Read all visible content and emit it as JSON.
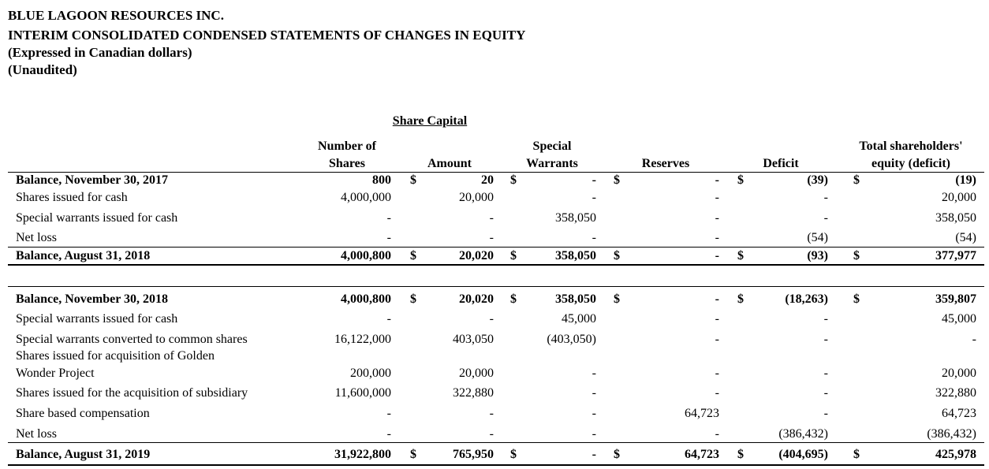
{
  "header": {
    "company": "BLUE LAGOON RESOURCES INC.",
    "statement": "INTERIM CONSOLIDATED CONDENSED STATEMENTS OF CHANGES IN EQUITY",
    "currency_note": "(Expressed in Canadian dollars)",
    "audit_note": "(Unaudited)"
  },
  "columns": {
    "group_label": "Share Capital",
    "shares": [
      "Number of",
      "Shares"
    ],
    "amount": [
      "",
      "Amount"
    ],
    "special_warrants": [
      "Special",
      "Warrants"
    ],
    "reserves": [
      "",
      "Reserves"
    ],
    "deficit": [
      "",
      "Deficit"
    ],
    "total": [
      "Total shareholders'",
      "equity (deficit)"
    ]
  },
  "dollar_sign": "$",
  "rows": [
    {
      "label": "Balance, November 30, 2017",
      "bold": true,
      "dollar": true,
      "values": [
        "800",
        "20",
        "-",
        "-",
        "(39)",
        "(19)"
      ]
    },
    {
      "label": "Shares issued for cash",
      "values": [
        "4,000,000",
        "20,000",
        "-",
        "-",
        "-",
        "20,000"
      ]
    },
    {
      "label": "Special warrants issued for cash",
      "values": [
        "-",
        "-",
        "358,050",
        "-",
        "-",
        "358,050"
      ]
    },
    {
      "label": "Net loss",
      "values": [
        "-",
        "-",
        "-",
        "-",
        "(54)",
        "(54)"
      ]
    },
    {
      "label": "Balance, August 31, 2018",
      "bold": true,
      "dollar": true,
      "values": [
        "4,000,800",
        "20,020",
        "358,050",
        "-",
        "(93)",
        "377,977"
      ]
    },
    {
      "label": "Balance, November 30, 2018",
      "bold": true,
      "dollar": true,
      "values": [
        "4,000,800",
        "20,020",
        "358,050",
        "-",
        "(18,263)",
        "359,807"
      ]
    },
    {
      "label": "Special warrants issued for cash",
      "values": [
        "-",
        "-",
        "45,000",
        "-",
        "-",
        "45,000"
      ]
    },
    {
      "label": "Special warrants converted to common shares",
      "values": [
        "16,122,000",
        "403,050",
        "(403,050)",
        "-",
        "-",
        "-"
      ]
    },
    {
      "label": "Shares issued for acquisition of Golden",
      "values": [
        "",
        "",
        "",
        "",
        "",
        ""
      ]
    },
    {
      "label": "Wonder Project",
      "values": [
        "200,000",
        "20,000",
        "-",
        "-",
        "-",
        "20,000"
      ]
    },
    {
      "label": "Shares issued for the acquisition of subsidiary",
      "values": [
        "11,600,000",
        "322,880",
        "-",
        "-",
        "-",
        "322,880"
      ]
    },
    {
      "label": "Share based compensation",
      "values": [
        "-",
        "-",
        "-",
        "64,723",
        "-",
        "64,723"
      ]
    },
    {
      "label": "Net loss",
      "values": [
        "-",
        "-",
        "-",
        "-",
        "(386,432)",
        "(386,432)"
      ]
    },
    {
      "label": "Balance, August 31, 2019",
      "bold": true,
      "dollar": true,
      "values": [
        "31,922,800",
        "765,950",
        "-",
        "64,723",
        "(404,695)",
        "425,978"
      ]
    }
  ]
}
